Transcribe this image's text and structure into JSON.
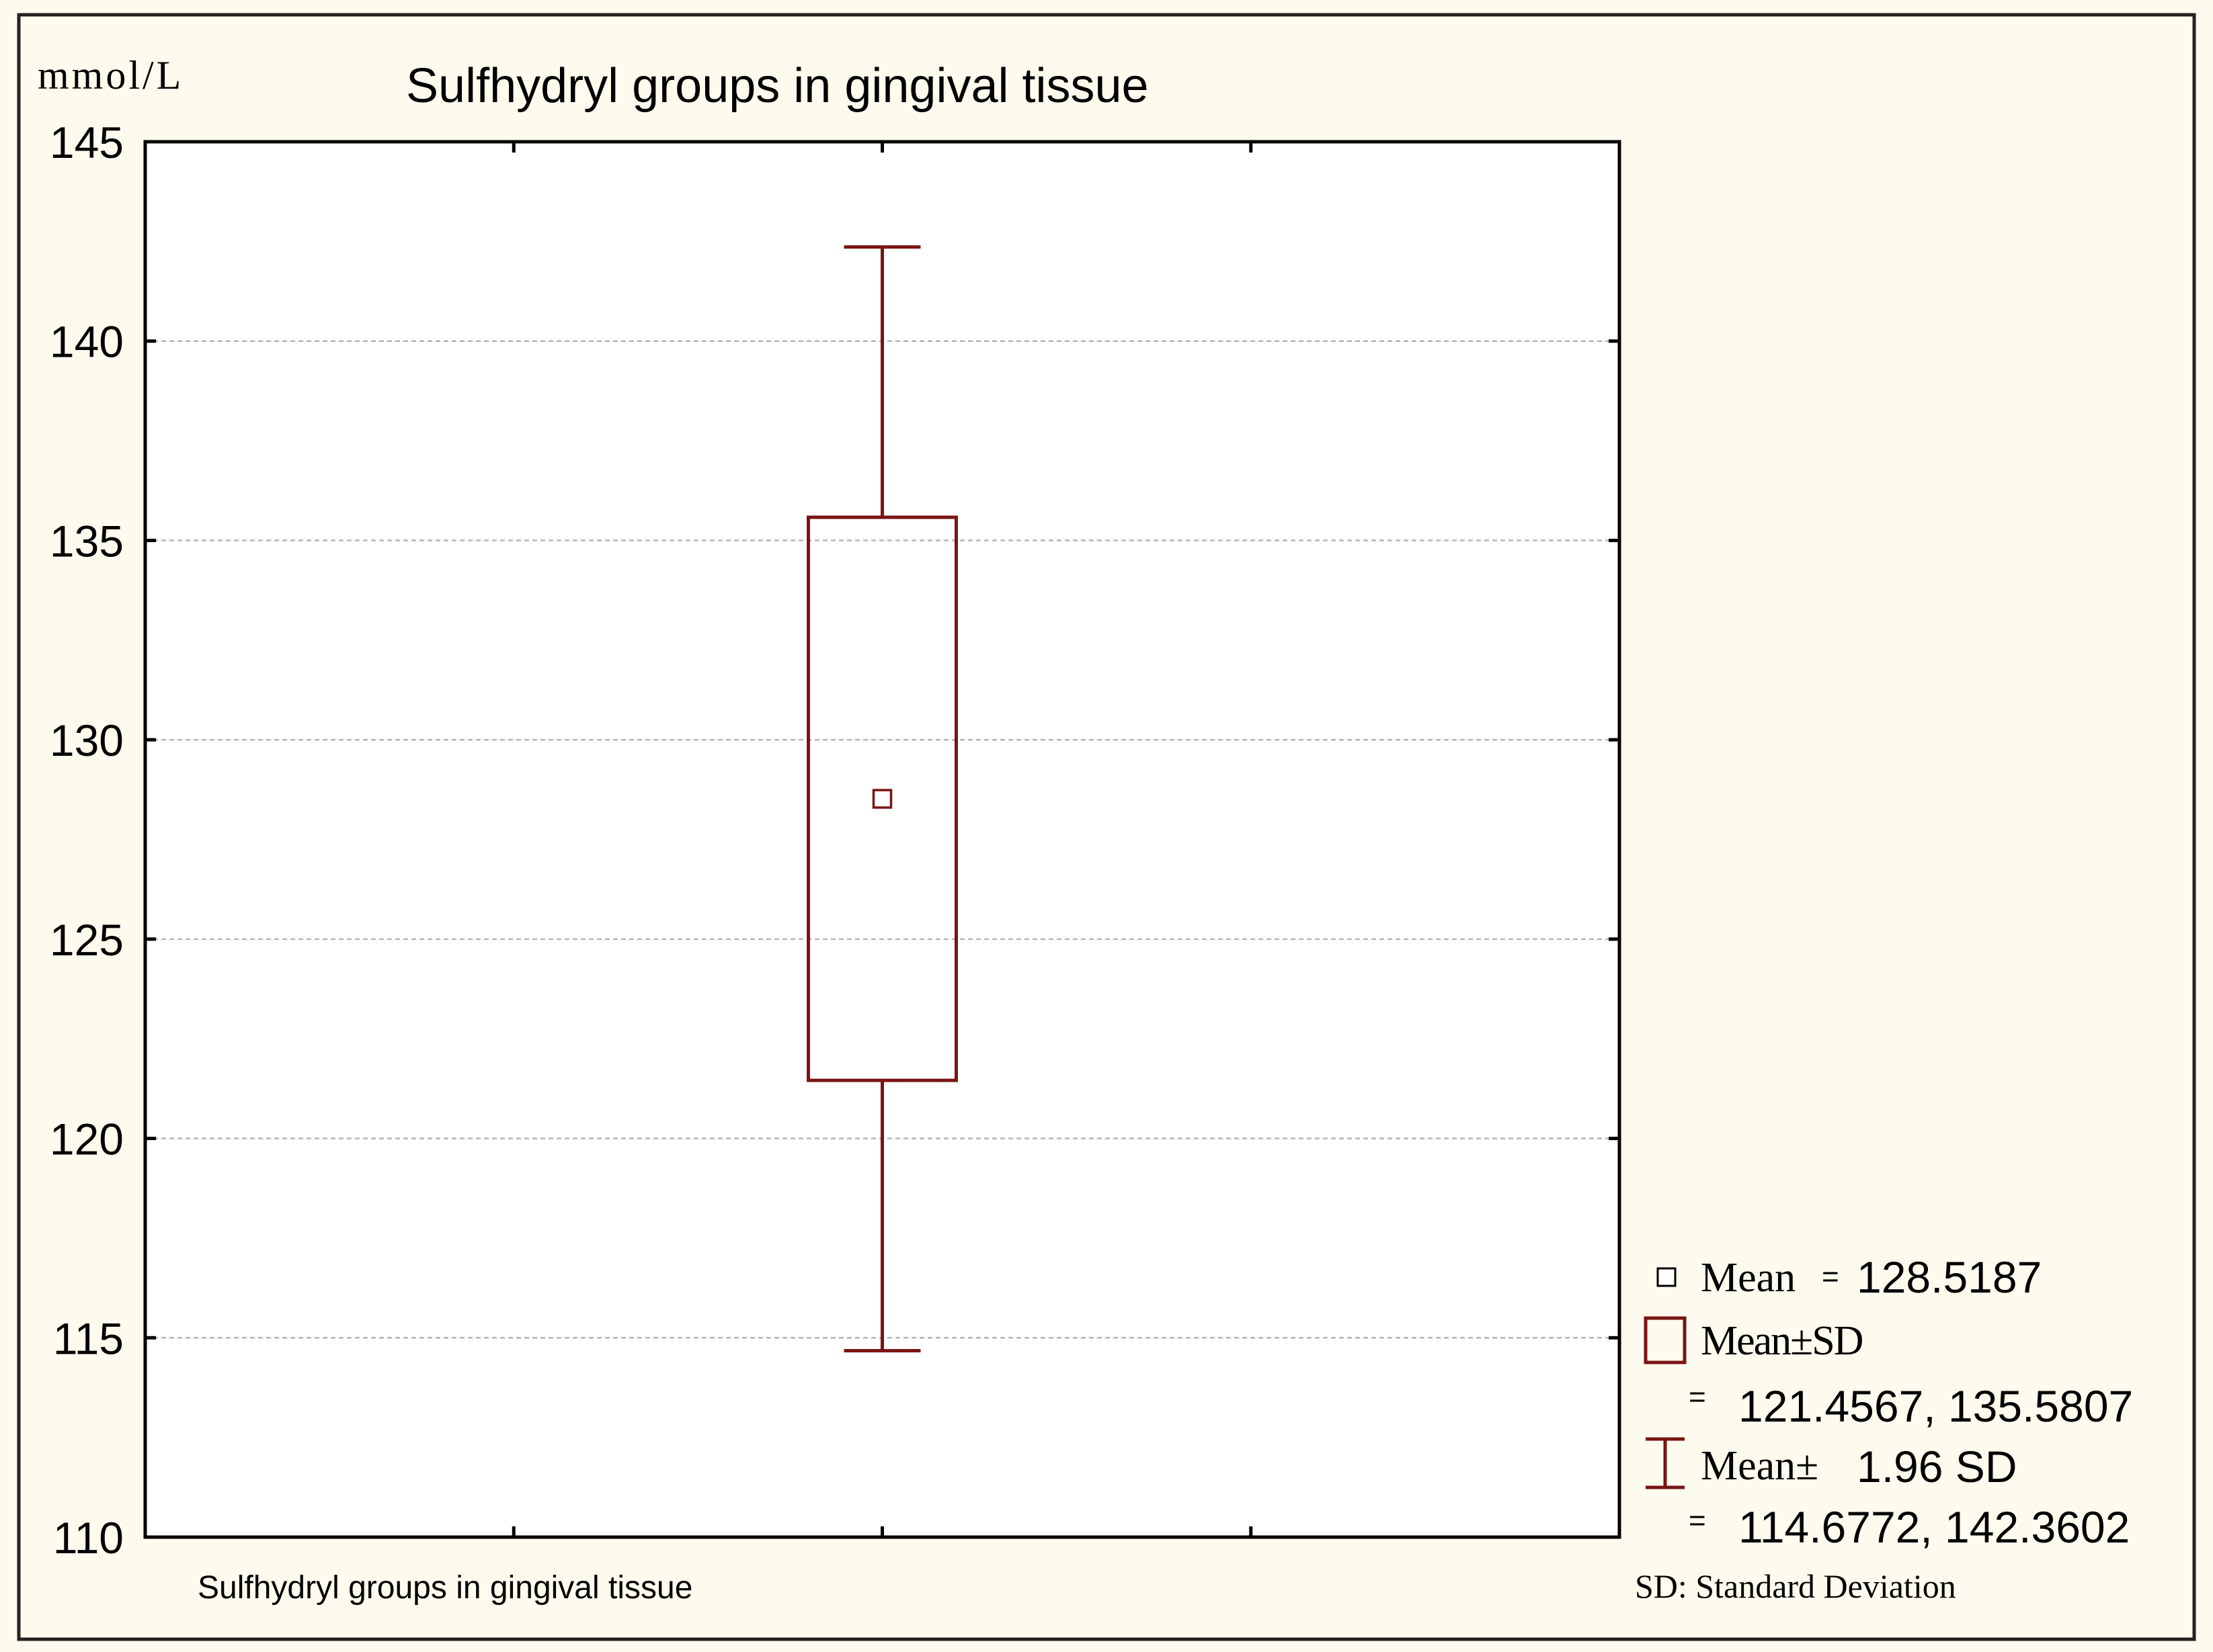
{
  "chart_data": {
    "type": "box",
    "title": "Sulfhydryl groups in gingival tissue",
    "ylabel": "mmol/L",
    "xlabel": "Sulfhydryl groups in gingival tissue",
    "ylim": [
      110,
      145
    ],
    "yticks": [
      "145",
      "140",
      "135",
      "130",
      "125",
      "120",
      "115",
      "110"
    ],
    "ytick_values": [
      145,
      140,
      135,
      130,
      125,
      120,
      115,
      110
    ],
    "grid": true,
    "series": [
      {
        "mean": 128.5187,
        "sd_low": 121.4567,
        "sd_high": 135.5807,
        "whisker_low": 114.6772,
        "whisker_high": 142.3602
      }
    ],
    "legend": {
      "placement": "bottom-right",
      "mean_label": "Mean",
      "mean_eq": "=",
      "mean_value": "128.5187",
      "sd_label": "Mean±SD",
      "sd_eq": "=",
      "sd_value": "121.4567, 135.5807",
      "ci_label": "Mean±",
      "ci_value_label": "1.96 SD",
      "ci_eq": "=",
      "ci_value": "114.6772, 142.3602",
      "footnote": "SD: Standard Deviation"
    },
    "colors": {
      "box": "#7a1414",
      "axis": "#000000",
      "grid": "#b5b5b5",
      "background": "#fdfbee",
      "plot_background": "#ffffff"
    }
  }
}
